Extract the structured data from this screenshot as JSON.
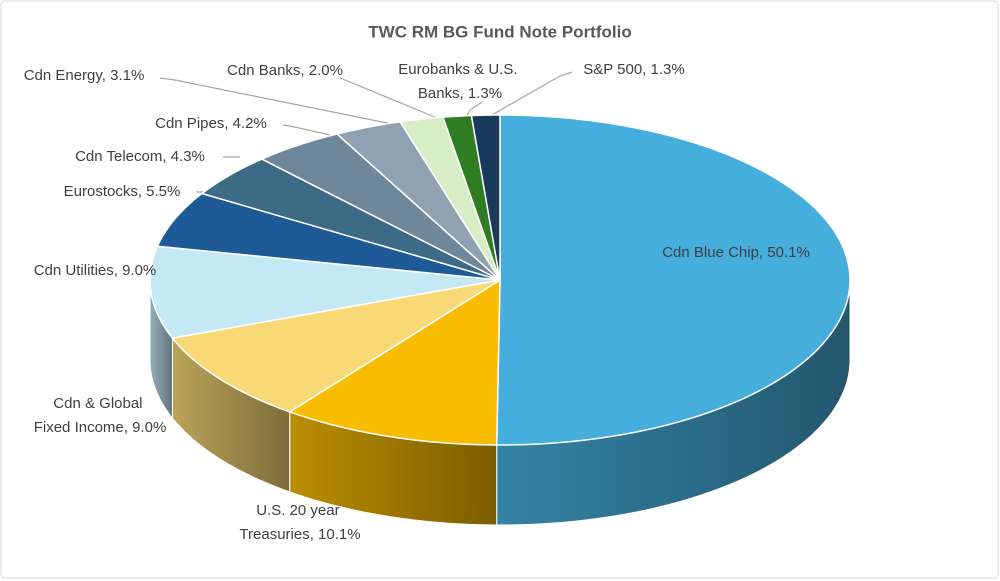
{
  "chart_data": {
    "type": "pie",
    "title": "TWC RM BG Fund Note Portfolio",
    "values": [
      50.1,
      10.1,
      9.0,
      9.0,
      5.5,
      4.3,
      4.2,
      3.1,
      2.0,
      1.3,
      1.3
    ],
    "value_labels": [
      "Cdn Blue Chip, 50.1%",
      "U.S. 20 year Treasuries, 10.1%",
      "Cdn & Global Fixed Income, 9.0%",
      "Cdn Utilities, 9.0%",
      "Eurostocks, 5.5%",
      "Cdn Telecom, 4.3%",
      "Cdn Pipes, 4.2%",
      "Cdn Energy, 3.1%",
      "Cdn Banks, 2.0%",
      "Eurobanks & U.S. Banks, 1.3%",
      "S&P 500, 1.3%"
    ],
    "colors": [
      "#45aedc",
      "#f9bc00",
      "#f9d976",
      "#c5e8f5",
      "#1e5a96",
      "#3d6b85",
      "#6e879b",
      "#8ea2b2",
      "#d6efc6",
      "#2e7d23",
      "#1a3a5c"
    ]
  }
}
